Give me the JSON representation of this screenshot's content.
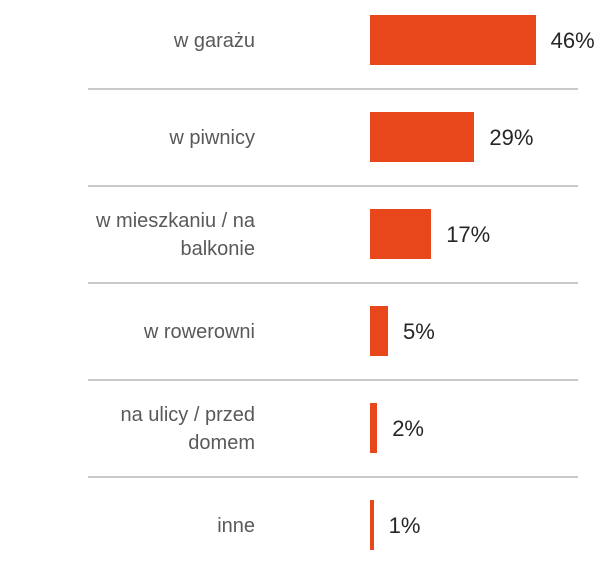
{
  "chart_data": {
    "type": "bar",
    "orientation": "horizontal",
    "categories": [
      "w garażu",
      "w piwnicy",
      "w mieszkaniu / na balkonie",
      "w rowerowni",
      "na ulicy / przed domem",
      "inne"
    ],
    "values": [
      46,
      29,
      17,
      5,
      2,
      1
    ],
    "value_labels": [
      "46%",
      "29%",
      "17%",
      "5%",
      "2%",
      "1%"
    ],
    "color": "#e8471b"
  }
}
